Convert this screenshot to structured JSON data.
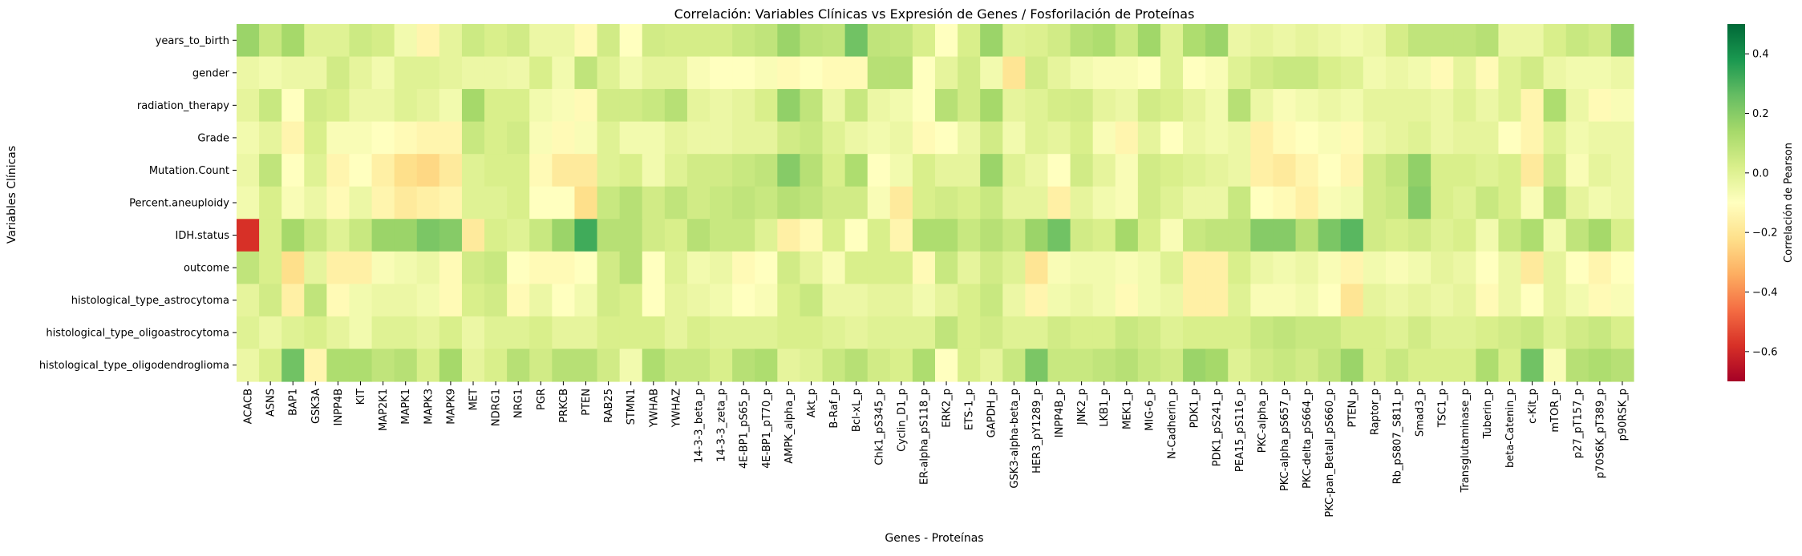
{
  "chart_data": {
    "type": "heatmap",
    "title": "Correlación: Variables Clínicas vs Expresión de Genes / Fosforilación de Proteínas",
    "xlabel": "Genes - Proteínas",
    "ylabel": "Variables Clínicas",
    "colorbar_label": "Correlación de Pearson",
    "colorbar_ticks": [
      "0.4",
      "0.2",
      "0.0",
      "−0.2",
      "−0.4",
      "−0.6"
    ],
    "colorbar_tick_values": [
      0.4,
      0.2,
      0.0,
      -0.2,
      -0.4,
      -0.6
    ],
    "vmin": -0.7,
    "vmax": 0.5,
    "colormap": "RdYlGn",
    "columns": [
      "ACACB",
      "ASNS",
      "BAP1",
      "GSK3A",
      "INPP4B",
      "KIT",
      "MAP2K1",
      "MAPK1",
      "MAPK3",
      "MAPK9",
      "MET",
      "NDRG1",
      "NRG1",
      "PGR",
      "PRKCB",
      "PTEN",
      "RAB25",
      "STMN1",
      "YWHAB",
      "YWHAZ",
      "14-3-3_beta_p",
      "14-3-3_zeta_p",
      "4E-BP1_pS65_p",
      "4E-BP1_pT70_p",
      "AMPK_alpha_p",
      "Akt_p",
      "B-Raf_p",
      "Bcl-xL_p",
      "Chk1_pS345_p",
      "Cyclin_D1_p",
      "ER-alpha_pS118_p",
      "ERK2_p",
      "ETS-1_p",
      "GAPDH_p",
      "GSK3-alpha-beta_p",
      "HER3_pY1289_p",
      "INPP4B_p",
      "JNK2_p",
      "LKB1_p",
      "MEK1_p",
      "MIG-6_p",
      "N-Cadherin_p",
      "PDK1_p",
      "PDK1_pS241_p",
      "PEA15_pS116_p",
      "PKC-alpha_p",
      "PKC-alpha_pS657_p",
      "PKC-delta_pS664_p",
      "PKC-pan_BetaII_pS660_p",
      "PTEN_p",
      "Raptor_p",
      "Rb_pS807_S811_p",
      "Smad3_p",
      "TSC1_p",
      "Transglutaminase_p",
      "Tuberin_p",
      "beta-Catenin_p",
      "c-Kit_p",
      "mTOR_p",
      "p27_pT157_p",
      "p70S6K_pT389_p",
      "p90RSK_p"
    ],
    "x_tick_labels": [
      "ACACB",
      "ASNS",
      "BAP1",
      "GSK3A",
      "INPP4B",
      "KIT",
      "MAP2K1",
      "MAPK1",
      "MAPK3",
      "MAPK9",
      "MET",
      "NDRG1",
      "NRG1",
      "PGR",
      "PRKCB",
      "PTEN",
      "RAB25",
      "STMN1",
      "YWHAB",
      "YWHAZ",
      "14-3-3_beta_p",
      "14-3-3_zeta_p",
      "4E-BP1_pS65_p",
      "4E-BP1_pT70_p",
      "AMPK_alpha_p",
      "Akt_p",
      "B-Raf_p",
      "Bcl-xL_p",
      "Chk1_pS345_p",
      "Cyclin_D1_p",
      "ER-alpha_pS118_p",
      "ERK2_p",
      "ETS-1_p",
      "GAPDH_p",
      "GSK3-alpha-beta_p",
      "HER3_pY1289_p",
      "INPP4B_p",
      "JNK2_p",
      "LKB1_p",
      "MEK1_p",
      "MIG-6_p",
      "N-Cadherin_p",
      "PDK1_p",
      "PDK1_pS241_p",
      "PEA15_pS116_p",
      "PKC-alpha_p",
      "PKC-alpha_pS657_p",
      "PKC-delta_pS664_p",
      "PKC-pan_BetaII_pS660_p",
      "PTEN_p",
      "Raptor_p",
      "Rb_pS807_S811_p",
      "Smad3_p",
      "TSC1_p",
      "Transglutaminase_p",
      "Tuberin_p",
      "beta-Catenin_p",
      "c-Kit_p",
      "mTOR_p",
      "p27_pT157_p",
      "p70S6K_pT389_p",
      "p90RSK_p"
    ],
    "rows": [
      "years_to_birth",
      "gender",
      "radiation_therapy",
      "Grade",
      "Mutation.Count",
      "Percent.aneuploidy",
      "IDH.status",
      "outcome",
      "histological_type_astrocytoma",
      "histological_type_oligoastrocytoma",
      "histological_type_oligodendroglioma"
    ],
    "values": [
      [
        0.16,
        0.06,
        0.14,
        0.0,
        0.0,
        0.05,
        0.03,
        -0.06,
        -0.14,
        -0.02,
        0.05,
        0.02,
        0.04,
        -0.04,
        -0.04,
        -0.12,
        0.04,
        -0.1,
        0.04,
        0.03,
        0.03,
        0.03,
        0.06,
        0.08,
        0.16,
        0.09,
        0.08,
        0.24,
        0.08,
        0.07,
        0.02,
        -0.1,
        0.02,
        0.16,
        0.0,
        0.01,
        0.04,
        0.1,
        0.12,
        0.05,
        0.15,
        0.0,
        0.12,
        0.16,
        -0.04,
        -0.02,
        -0.04,
        -0.02,
        -0.04,
        -0.06,
        -0.04,
        0.03,
        0.08,
        0.08,
        0.08,
        0.1,
        -0.04,
        -0.04,
        0.02,
        0.06,
        0.04,
        0.18
      ],
      [
        -0.04,
        -0.06,
        -0.04,
        -0.04,
        0.04,
        -0.02,
        -0.06,
        0.0,
        0.0,
        -0.02,
        -0.04,
        -0.04,
        -0.05,
        0.02,
        -0.06,
        0.08,
        0.0,
        -0.06,
        -0.02,
        -0.02,
        -0.08,
        -0.1,
        -0.1,
        -0.08,
        -0.12,
        -0.1,
        -0.12,
        -0.12,
        0.1,
        0.1,
        -0.1,
        -0.02,
        0.04,
        -0.06,
        -0.2,
        0.04,
        -0.02,
        -0.06,
        -0.08,
        -0.08,
        -0.1,
        0.0,
        -0.1,
        -0.08,
        0.0,
        0.04,
        0.06,
        0.06,
        0.02,
        0.0,
        -0.06,
        -0.04,
        -0.06,
        -0.12,
        -0.02,
        -0.12,
        0.0,
        0.04,
        -0.04,
        -0.06,
        -0.06,
        -0.04
      ],
      [
        -0.02,
        0.06,
        -0.1,
        0.04,
        0.02,
        -0.04,
        -0.04,
        0.0,
        -0.02,
        -0.06,
        0.14,
        0.02,
        0.02,
        -0.06,
        -0.08,
        -0.12,
        0.04,
        0.04,
        0.06,
        0.1,
        -0.02,
        -0.04,
        -0.02,
        0.02,
        0.18,
        0.08,
        -0.04,
        0.06,
        -0.04,
        -0.06,
        -0.1,
        0.1,
        0.04,
        0.14,
        -0.02,
        0.0,
        0.03,
        0.04,
        -0.02,
        -0.04,
        0.04,
        0.02,
        -0.02,
        -0.06,
        0.1,
        -0.04,
        -0.08,
        -0.06,
        -0.04,
        -0.06,
        -0.02,
        -0.02,
        -0.02,
        -0.04,
        0.0,
        -0.04,
        0.0,
        -0.14,
        0.12,
        -0.04,
        -0.12,
        -0.08
      ],
      [
        -0.06,
        -0.02,
        -0.14,
        0.02,
        -0.08,
        -0.08,
        -0.1,
        -0.12,
        -0.14,
        -0.14,
        0.06,
        0.02,
        0.04,
        -0.08,
        -0.12,
        -0.08,
        0.0,
        -0.06,
        -0.06,
        -0.02,
        -0.04,
        -0.04,
        -0.02,
        -0.02,
        0.04,
        0.06,
        0.0,
        -0.04,
        -0.06,
        -0.04,
        -0.12,
        -0.1,
        -0.04,
        0.04,
        -0.06,
        0.0,
        -0.02,
        0.02,
        -0.08,
        -0.14,
        -0.02,
        -0.1,
        -0.04,
        -0.06,
        -0.04,
        -0.16,
        -0.12,
        -0.1,
        -0.08,
        -0.12,
        -0.04,
        -0.02,
        0.0,
        -0.04,
        -0.02,
        -0.02,
        -0.1,
        -0.14,
        0.0,
        -0.06,
        -0.04,
        -0.04
      ],
      [
        -0.04,
        0.08,
        -0.1,
        0.0,
        -0.14,
        -0.1,
        -0.16,
        -0.22,
        -0.24,
        -0.18,
        0.0,
        0.02,
        0.02,
        -0.12,
        -0.18,
        -0.18,
        0.0,
        0.02,
        -0.06,
        0.0,
        0.04,
        0.04,
        0.06,
        0.08,
        0.2,
        0.1,
        0.02,
        0.12,
        -0.1,
        -0.06,
        0.02,
        -0.02,
        -0.02,
        0.16,
        0.0,
        -0.04,
        -0.1,
        0.04,
        -0.02,
        -0.08,
        0.04,
        0.02,
        0.0,
        -0.02,
        -0.04,
        -0.16,
        -0.18,
        -0.14,
        -0.1,
        -0.14,
        0.04,
        0.08,
        0.18,
        0.02,
        0.02,
        0.0,
        0.02,
        -0.18,
        0.04,
        -0.08,
        -0.02,
        -0.04
      ],
      [
        -0.06,
        0.02,
        -0.08,
        -0.04,
        -0.12,
        -0.04,
        -0.14,
        -0.18,
        -0.16,
        -0.14,
        0.0,
        0.0,
        0.02,
        -0.1,
        -0.1,
        -0.22,
        0.06,
        0.1,
        0.04,
        0.08,
        0.04,
        0.06,
        0.08,
        0.06,
        0.1,
        0.08,
        0.04,
        0.04,
        -0.08,
        -0.18,
        0.02,
        0.04,
        0.02,
        0.06,
        -0.02,
        -0.02,
        -0.16,
        -0.02,
        -0.06,
        -0.08,
        0.04,
        0.0,
        -0.04,
        -0.04,
        0.06,
        -0.1,
        -0.12,
        -0.16,
        -0.08,
        -0.06,
        0.04,
        0.06,
        0.2,
        0.02,
        0.0,
        0.06,
        0.02,
        -0.08,
        0.1,
        -0.02,
        -0.06,
        -0.04
      ],
      [
        -0.58,
        0.02,
        0.14,
        0.06,
        0.0,
        0.06,
        0.16,
        0.16,
        0.22,
        0.2,
        -0.18,
        0.02,
        0.0,
        0.06,
        0.16,
        0.32,
        0.1,
        0.1,
        0.04,
        0.02,
        0.1,
        0.06,
        0.06,
        0.0,
        -0.16,
        -0.12,
        0.02,
        -0.1,
        0.02,
        -0.14,
        0.12,
        0.12,
        0.06,
        0.1,
        0.06,
        0.16,
        0.24,
        0.04,
        0.02,
        0.14,
        0.02,
        -0.08,
        0.06,
        0.08,
        0.08,
        0.2,
        0.2,
        0.1,
        0.22,
        0.28,
        0.04,
        0.02,
        0.04,
        0.0,
        0.02,
        -0.06,
        0.06,
        0.12,
        -0.06,
        0.08,
        0.14,
        0.02
      ],
      [
        0.08,
        0.02,
        -0.22,
        -0.02,
        -0.16,
        -0.16,
        -0.08,
        -0.06,
        -0.04,
        -0.12,
        0.04,
        0.06,
        -0.1,
        -0.12,
        -0.12,
        -0.1,
        0.04,
        0.1,
        -0.1,
        0.0,
        -0.06,
        -0.04,
        -0.12,
        -0.1,
        0.04,
        -0.02,
        -0.08,
        0.02,
        0.02,
        0.02,
        -0.12,
        0.06,
        -0.02,
        0.04,
        0.0,
        -0.2,
        -0.08,
        -0.06,
        -0.06,
        -0.08,
        -0.06,
        0.0,
        -0.16,
        -0.16,
        0.02,
        -0.04,
        -0.06,
        -0.04,
        -0.08,
        -0.14,
        -0.06,
        -0.08,
        -0.06,
        -0.02,
        -0.04,
        -0.1,
        -0.04,
        -0.18,
        -0.02,
        -0.1,
        -0.14,
        -0.1
      ],
      [
        -0.02,
        0.04,
        -0.16,
        0.08,
        -0.12,
        -0.06,
        -0.04,
        -0.04,
        -0.06,
        -0.12,
        0.02,
        0.04,
        -0.12,
        -0.04,
        -0.1,
        -0.06,
        0.04,
        0.02,
        -0.1,
        -0.02,
        -0.04,
        -0.06,
        -0.1,
        -0.08,
        0.02,
        0.06,
        -0.04,
        -0.04,
        -0.02,
        -0.02,
        -0.06,
        -0.02,
        0.02,
        0.06,
        -0.04,
        -0.14,
        -0.06,
        -0.04,
        -0.06,
        -0.12,
        -0.06,
        -0.04,
        -0.16,
        -0.16,
        0.0,
        -0.08,
        -0.08,
        -0.06,
        -0.1,
        -0.2,
        -0.02,
        -0.04,
        -0.02,
        -0.04,
        -0.02,
        -0.12,
        -0.04,
        -0.1,
        -0.02,
        -0.06,
        -0.12,
        -0.08
      ],
      [
        0.0,
        -0.04,
        0.0,
        0.02,
        -0.02,
        -0.06,
        0.0,
        0.0,
        -0.02,
        0.02,
        -0.04,
        0.0,
        0.0,
        0.02,
        -0.02,
        -0.02,
        0.02,
        0.02,
        0.02,
        -0.02,
        0.02,
        0.0,
        0.0,
        0.0,
        0.02,
        0.02,
        0.0,
        -0.02,
        0.0,
        0.0,
        0.0,
        0.08,
        0.02,
        0.04,
        0.0,
        0.0,
        0.04,
        0.02,
        0.02,
        0.06,
        0.04,
        0.0,
        0.02,
        0.02,
        0.02,
        0.06,
        0.08,
        0.06,
        0.06,
        0.02,
        0.02,
        0.0,
        0.04,
        0.0,
        0.0,
        0.02,
        0.04,
        0.06,
        0.0,
        0.04,
        0.06,
        0.02
      ],
      [
        -0.04,
        0.02,
        0.24,
        -0.14,
        0.12,
        0.12,
        0.08,
        0.1,
        0.02,
        0.14,
        -0.02,
        0.02,
        0.1,
        0.04,
        0.1,
        0.1,
        0.04,
        -0.06,
        0.12,
        0.06,
        0.06,
        0.02,
        0.1,
        0.12,
        -0.02,
        0.0,
        0.06,
        0.1,
        0.04,
        0.02,
        0.12,
        -0.1,
        0.02,
        -0.02,
        0.06,
        0.22,
        0.06,
        0.06,
        0.08,
        0.1,
        0.06,
        0.04,
        0.16,
        0.14,
        0.0,
        0.04,
        0.06,
        0.04,
        0.08,
        0.16,
        0.02,
        0.06,
        0.02,
        0.02,
        0.02,
        0.12,
        0.02,
        0.24,
        -0.08,
        0.1,
        0.12,
        0.1
      ]
    ]
  }
}
